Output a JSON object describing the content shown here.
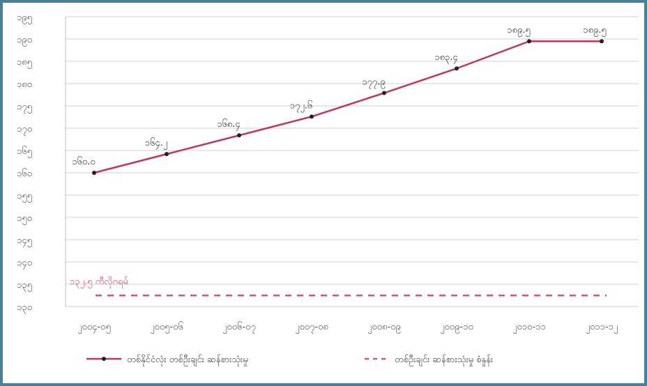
{
  "chart_data": {
    "type": "line",
    "title": "",
    "xlabel": "",
    "ylabel": "",
    "categories": [
      "၂၀၀၄-၀၅",
      "၂၀၀၅-၀၆",
      "၂၀၀၆-၀၇",
      "၂၀၀၇-၀၈",
      "၂၀၀၈-၀၉",
      "၂၀၀၉-၁၀",
      "၂၀၁၀-၁၁",
      "၂၀၁၁-၁၂"
    ],
    "y_tick_labels": [
      "၁၃၀",
      "၁၃၅",
      "၁၄၀",
      "၁၄၅",
      "၁၅၀",
      "၁၅၅",
      "၁၆၀",
      "၁၆၅",
      "၁၇၀",
      "၁၇၅",
      "၁၈၀",
      "၁၈၅",
      "၁၉၀",
      "၁၉၅"
    ],
    "ylim": [
      130,
      195
    ],
    "y_ticks": [
      130,
      135,
      140,
      145,
      150,
      155,
      160,
      165,
      170,
      175,
      180,
      185,
      190,
      195
    ],
    "grid": true,
    "series": [
      {
        "name": "တစ်နိုင်ငံလုံး တစ်ဦးချင်း ဆန်စားသုံးမှု",
        "style": "solid-with-markers",
        "color": "#c4335a",
        "values": [
          160.0,
          164.2,
          168.4,
          172.6,
          177.9,
          183.4,
          189.5,
          189.5
        ],
        "data_labels": [
          "၁၆၀.၀",
          "၁၆၄.၂",
          "၁၆၈.၄",
          "၁၇၂.၆",
          "၁၇၇.၉",
          "၁၈၃.၄",
          "၁၈၉.၅",
          "၁၈၉.၅"
        ]
      },
      {
        "name": "တစ်ဦးချင်း ဆန်စားသုံးမှု စံနှုန်း",
        "style": "dashed",
        "color": "#e0506f",
        "values": [
          132.5,
          132.5,
          132.5,
          132.5,
          132.5,
          132.5,
          132.5,
          132.5
        ],
        "data_labels": []
      }
    ],
    "annotations": [
      {
        "text": "၁၃၂.၅ ကီလိုဂရမ်",
        "series": 1
      }
    ],
    "legend_placement": "bottom"
  }
}
